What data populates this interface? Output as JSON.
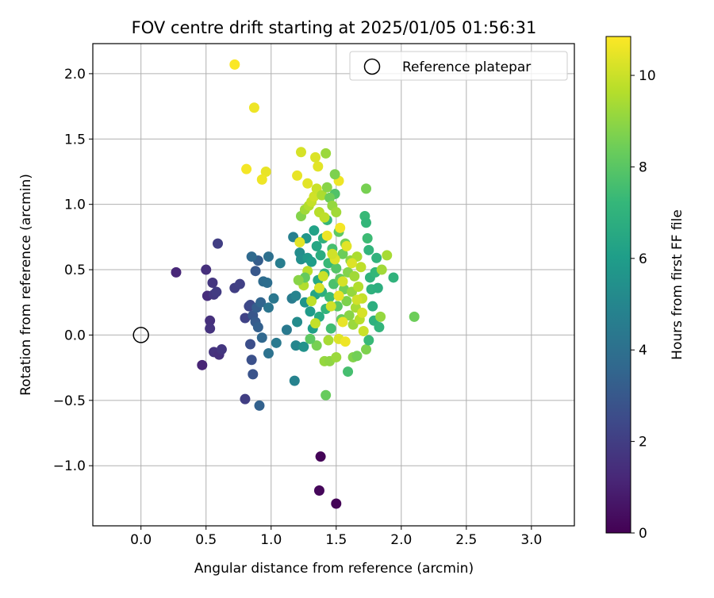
{
  "chart_data": {
    "type": "scatter",
    "title": "FOV centre drift starting at 2025/01/05 01:56:31",
    "xlabel": "Angular distance from reference (arcmin)",
    "ylabel": "Rotation from reference (arcmin)",
    "xlim": [
      -0.37,
      3.33
    ],
    "ylim": [
      -1.46,
      2.23
    ],
    "xticks": [
      0.0,
      0.5,
      1.0,
      1.5,
      2.0,
      2.5,
      3.0
    ],
    "xtick_labels": [
      "0.0",
      "0.5",
      "1.0",
      "1.5",
      "2.0",
      "2.5",
      "3.0"
    ],
    "yticks": [
      -1.0,
      -0.5,
      0.0,
      0.5,
      1.0,
      1.5,
      2.0
    ],
    "ytick_labels": [
      "−1.0",
      "−0.5",
      "0.0",
      "0.5",
      "1.0",
      "1.5",
      "2.0"
    ],
    "grid": true,
    "legend": {
      "position": "top-right",
      "entries": [
        "Reference platepar"
      ]
    },
    "reference_point": {
      "x": 0.0,
      "y": 0.0
    },
    "colorbar": {
      "label": "Hours from first FF file",
      "range": [
        0,
        10.85
      ],
      "ticks": [
        0,
        2,
        4,
        6,
        8,
        10
      ],
      "tick_labels": [
        "0",
        "2",
        "4",
        "6",
        "8",
        "10"
      ],
      "colormap": "viridis"
    },
    "colors": {
      "viridis": [
        "#440154",
        "#482878",
        "#3e4989",
        "#31688e",
        "#26828e",
        "#1f9e89",
        "#35b779",
        "#6ece58",
        "#b5de2b",
        "#fde725"
      ],
      "grid": "#b0b0b0",
      "axis": "#000000"
    },
    "points": [
      {
        "x": 1.38,
        "y": -0.93,
        "h": 0.1
      },
      {
        "x": 1.37,
        "y": -1.19,
        "h": 0.2
      },
      {
        "x": 1.5,
        "y": -1.29,
        "h": 0.1
      },
      {
        "x": 0.47,
        "y": -0.23,
        "h": 1.1
      },
      {
        "x": 0.27,
        "y": 0.48,
        "h": 1.2
      },
      {
        "x": 0.51,
        "y": 0.3,
        "h": 1.4
      },
      {
        "x": 0.5,
        "y": 0.5,
        "h": 1.5
      },
      {
        "x": 0.53,
        "y": 0.11,
        "h": 1.5
      },
      {
        "x": 0.53,
        "y": 0.05,
        "h": 1.6
      },
      {
        "x": 0.55,
        "y": 0.4,
        "h": 1.7
      },
      {
        "x": 0.56,
        "y": 0.31,
        "h": 1.8
      },
      {
        "x": 0.58,
        "y": 0.33,
        "h": 1.9
      },
      {
        "x": 0.56,
        "y": -0.13,
        "h": 1.6
      },
      {
        "x": 0.6,
        "y": -0.15,
        "h": 1.5
      },
      {
        "x": 0.62,
        "y": -0.11,
        "h": 1.7
      },
      {
        "x": 0.59,
        "y": 0.7,
        "h": 2.0
      },
      {
        "x": 0.72,
        "y": 0.36,
        "h": 2.0
      },
      {
        "x": 0.76,
        "y": 0.39,
        "h": 2.1
      },
      {
        "x": 0.8,
        "y": 0.13,
        "h": 2.2
      },
      {
        "x": 0.8,
        "y": -0.49,
        "h": 2.0
      },
      {
        "x": 0.83,
        "y": 0.22,
        "h": 2.3
      },
      {
        "x": 0.84,
        "y": 0.23,
        "h": 2.4
      },
      {
        "x": 0.84,
        "y": -0.07,
        "h": 2.6
      },
      {
        "x": 0.85,
        "y": -0.19,
        "h": 2.7
      },
      {
        "x": 0.86,
        "y": -0.3,
        "h": 2.8
      },
      {
        "x": 0.86,
        "y": 0.15,
        "h": 2.9
      },
      {
        "x": 0.88,
        "y": 0.49,
        "h": 3.0
      },
      {
        "x": 0.88,
        "y": 0.1,
        "h": 3.1
      },
      {
        "x": 0.89,
        "y": 0.21,
        "h": 3.2
      },
      {
        "x": 0.9,
        "y": 0.57,
        "h": 3.2
      },
      {
        "x": 0.9,
        "y": 0.06,
        "h": 3.3
      },
      {
        "x": 0.91,
        "y": -0.54,
        "h": 3.4
      },
      {
        "x": 0.92,
        "y": 0.25,
        "h": 3.5
      },
      {
        "x": 0.93,
        "y": -0.02,
        "h": 3.6
      },
      {
        "x": 0.85,
        "y": 0.6,
        "h": 3.7
      },
      {
        "x": 0.94,
        "y": 0.41,
        "h": 3.8
      },
      {
        "x": 0.97,
        "y": 0.4,
        "h": 3.9
      },
      {
        "x": 0.98,
        "y": 0.6,
        "h": 4.0
      },
      {
        "x": 0.98,
        "y": -0.14,
        "h": 4.1
      },
      {
        "x": 0.98,
        "y": 0.21,
        "h": 4.2
      },
      {
        "x": 1.02,
        "y": 0.28,
        "h": 4.3
      },
      {
        "x": 1.04,
        "y": -0.06,
        "h": 4.4
      },
      {
        "x": 1.07,
        "y": 0.55,
        "h": 4.6
      },
      {
        "x": 1.12,
        "y": 0.04,
        "h": 4.4
      },
      {
        "x": 1.16,
        "y": 0.28,
        "h": 4.5
      },
      {
        "x": 1.17,
        "y": 0.75,
        "h": 4.7
      },
      {
        "x": 1.18,
        "y": -0.35,
        "h": 4.8
      },
      {
        "x": 1.19,
        "y": 0.3,
        "h": 4.9
      },
      {
        "x": 1.19,
        "y": -0.08,
        "h": 5.0
      },
      {
        "x": 1.2,
        "y": 0.1,
        "h": 5.2
      },
      {
        "x": 1.22,
        "y": 0.63,
        "h": 5.3
      },
      {
        "x": 1.23,
        "y": 0.58,
        "h": 5.4
      },
      {
        "x": 1.25,
        "y": -0.09,
        "h": 5.5
      },
      {
        "x": 1.26,
        "y": 0.25,
        "h": 5.6
      },
      {
        "x": 1.27,
        "y": 0.74,
        "h": 5.7
      },
      {
        "x": 1.28,
        "y": 0.59,
        "h": 5.8
      },
      {
        "x": 1.3,
        "y": 0.18,
        "h": 5.9
      },
      {
        "x": 1.31,
        "y": 0.56,
        "h": 6.0
      },
      {
        "x": 1.32,
        "y": 0.05,
        "h": 6.1
      },
      {
        "x": 1.33,
        "y": 0.8,
        "h": 6.2
      },
      {
        "x": 1.34,
        "y": 0.31,
        "h": 6.3
      },
      {
        "x": 1.35,
        "y": 0.68,
        "h": 6.4
      },
      {
        "x": 1.36,
        "y": 0.42,
        "h": 6.5
      },
      {
        "x": 1.37,
        "y": 0.14,
        "h": 6.6
      },
      {
        "x": 1.38,
        "y": 0.61,
        "h": 6.7
      },
      {
        "x": 1.39,
        "y": 0.33,
        "h": 6.8
      },
      {
        "x": 1.4,
        "y": 0.74,
        "h": 6.9
      },
      {
        "x": 1.41,
        "y": 0.47,
        "h": 7.0
      },
      {
        "x": 1.42,
        "y": 0.2,
        "h": 7.1
      },
      {
        "x": 1.43,
        "y": 0.88,
        "h": 7.2
      },
      {
        "x": 1.44,
        "y": 0.55,
        "h": 7.3
      },
      {
        "x": 1.45,
        "y": 0.29,
        "h": 7.4
      },
      {
        "x": 1.46,
        "y": 0.05,
        "h": 7.5
      },
      {
        "x": 1.47,
        "y": 0.66,
        "h": 7.6
      },
      {
        "x": 1.48,
        "y": 0.39,
        "h": 7.7
      },
      {
        "x": 1.49,
        "y": 1.08,
        "h": 7.8
      },
      {
        "x": 1.5,
        "y": 0.51,
        "h": 7.9
      },
      {
        "x": 1.51,
        "y": 0.22,
        "h": 8.0
      },
      {
        "x": 1.52,
        "y": 0.79,
        "h": 8.1
      },
      {
        "x": 1.53,
        "y": 0.43,
        "h": 8.2
      },
      {
        "x": 1.54,
        "y": 0.12,
        "h": 8.3
      },
      {
        "x": 1.55,
        "y": 0.62,
        "h": 8.4
      },
      {
        "x": 1.56,
        "y": 0.35,
        "h": 8.5
      },
      {
        "x": 1.57,
        "y": 0.7,
        "h": 8.6
      },
      {
        "x": 1.58,
        "y": 0.26,
        "h": 8.7
      },
      {
        "x": 1.59,
        "y": 0.48,
        "h": 8.8
      },
      {
        "x": 1.6,
        "y": 0.15,
        "h": 8.9
      },
      {
        "x": 1.61,
        "y": 0.57,
        "h": 9.0
      },
      {
        "x": 1.62,
        "y": 0.33,
        "h": 9.1
      },
      {
        "x": 1.63,
        "y": 0.08,
        "h": 9.2
      },
      {
        "x": 1.64,
        "y": 0.45,
        "h": 9.3
      },
      {
        "x": 1.65,
        "y": 0.21,
        "h": 9.4
      },
      {
        "x": 1.66,
        "y": 0.6,
        "h": 9.5
      },
      {
        "x": 1.67,
        "y": 0.37,
        "h": 9.6
      },
      {
        "x": 1.68,
        "y": 0.12,
        "h": 9.7
      },
      {
        "x": 1.69,
        "y": 0.52,
        "h": 9.8
      },
      {
        "x": 1.7,
        "y": 0.28,
        "h": 9.9
      },
      {
        "x": 1.71,
        "y": 0.03,
        "h": 10.0
      },
      {
        "x": 1.72,
        "y": 0.91,
        "h": 7.3
      },
      {
        "x": 1.73,
        "y": 0.86,
        "h": 7.2
      },
      {
        "x": 1.74,
        "y": 0.74,
        "h": 7.4
      },
      {
        "x": 1.75,
        "y": 0.65,
        "h": 7.1
      },
      {
        "x": 1.76,
        "y": 0.44,
        "h": 7.0
      },
      {
        "x": 1.77,
        "y": 0.35,
        "h": 6.9
      },
      {
        "x": 1.78,
        "y": 0.22,
        "h": 6.8
      },
      {
        "x": 1.79,
        "y": 0.11,
        "h": 6.9
      },
      {
        "x": 1.8,
        "y": 0.48,
        "h": 7.2
      },
      {
        "x": 1.81,
        "y": 0.59,
        "h": 7.0
      },
      {
        "x": 1.82,
        "y": 0.36,
        "h": 6.8
      },
      {
        "x": 1.83,
        "y": 0.06,
        "h": 7.1
      },
      {
        "x": 1.84,
        "y": 0.14,
        "h": 9.1
      },
      {
        "x": 1.85,
        "y": 0.5,
        "h": 9.3
      },
      {
        "x": 1.89,
        "y": 0.61,
        "h": 9.4
      },
      {
        "x": 1.94,
        "y": 0.44,
        "h": 7.0
      },
      {
        "x": 2.1,
        "y": 0.14,
        "h": 8.4
      },
      {
        "x": 1.73,
        "y": 1.12,
        "h": 8.6
      },
      {
        "x": 1.73,
        "y": -0.11,
        "h": 8.7
      },
      {
        "x": 1.75,
        "y": -0.04,
        "h": 7.3
      },
      {
        "x": 1.7,
        "y": 0.17,
        "h": 10.2
      },
      {
        "x": 1.66,
        "y": 0.27,
        "h": 10.1
      },
      {
        "x": 1.62,
        "y": 0.55,
        "h": 10.3
      },
      {
        "x": 1.58,
        "y": 0.68,
        "h": 10.4
      },
      {
        "x": 1.55,
        "y": 0.41,
        "h": 10.2
      },
      {
        "x": 1.52,
        "y": 0.3,
        "h": 10.5
      },
      {
        "x": 1.49,
        "y": 0.58,
        "h": 10.3
      },
      {
        "x": 1.46,
        "y": 0.22,
        "h": 10.1
      },
      {
        "x": 1.43,
        "y": 0.76,
        "h": 10.6
      },
      {
        "x": 1.4,
        "y": 0.45,
        "h": 10.0
      },
      {
        "x": 1.37,
        "y": 0.36,
        "h": 10.2
      },
      {
        "x": 1.34,
        "y": 0.09,
        "h": 9.9
      },
      {
        "x": 1.31,
        "y": 0.26,
        "h": 9.8
      },
      {
        "x": 1.28,
        "y": 0.49,
        "h": 9.7
      },
      {
        "x": 1.25,
        "y": 0.38,
        "h": 9.6
      },
      {
        "x": 1.22,
        "y": 0.71,
        "h": 10.4
      },
      {
        "x": 1.52,
        "y": -0.03,
        "h": 10.3
      },
      {
        "x": 1.55,
        "y": 0.1,
        "h": 10.5
      },
      {
        "x": 1.57,
        "y": -0.05,
        "h": 10.6
      },
      {
        "x": 1.47,
        "y": 0.62,
        "h": 10.1
      },
      {
        "x": 1.53,
        "y": 0.82,
        "h": 10.7
      },
      {
        "x": 1.44,
        "y": -0.04,
        "h": 9.4
      },
      {
        "x": 1.41,
        "y": -0.2,
        "h": 9.1
      },
      {
        "x": 1.45,
        "y": -0.2,
        "h": 9.0
      },
      {
        "x": 1.5,
        "y": -0.17,
        "h": 9.2
      },
      {
        "x": 1.63,
        "y": -0.17,
        "h": 8.8
      },
      {
        "x": 1.66,
        "y": -0.16,
        "h": 8.5
      },
      {
        "x": 1.59,
        "y": -0.28,
        "h": 7.6
      },
      {
        "x": 1.42,
        "y": -0.46,
        "h": 8.3
      },
      {
        "x": 1.35,
        "y": -0.08,
        "h": 8.6
      },
      {
        "x": 1.3,
        "y": -0.03,
        "h": 8.1
      },
      {
        "x": 1.26,
        "y": 0.44,
        "h": 8.2
      },
      {
        "x": 1.21,
        "y": 0.42,
        "h": 8.9
      },
      {
        "x": 1.23,
        "y": 0.91,
        "h": 8.8
      },
      {
        "x": 1.26,
        "y": 0.96,
        "h": 9.3
      },
      {
        "x": 1.29,
        "y": 0.99,
        "h": 9.6
      },
      {
        "x": 1.31,
        "y": 1.02,
        "h": 9.9
      },
      {
        "x": 1.33,
        "y": 1.06,
        "h": 10.1
      },
      {
        "x": 1.35,
        "y": 1.12,
        "h": 10.0
      },
      {
        "x": 1.37,
        "y": 0.94,
        "h": 9.7
      },
      {
        "x": 1.39,
        "y": 1.07,
        "h": 9.5
      },
      {
        "x": 1.41,
        "y": 0.9,
        "h": 9.8
      },
      {
        "x": 1.43,
        "y": 1.13,
        "h": 8.9
      },
      {
        "x": 1.45,
        "y": 1.05,
        "h": 8.4
      },
      {
        "x": 1.47,
        "y": 0.99,
        "h": 9.1
      },
      {
        "x": 1.5,
        "y": 0.94,
        "h": 9.3
      },
      {
        "x": 1.52,
        "y": 1.18,
        "h": 10.6
      },
      {
        "x": 1.49,
        "y": 1.23,
        "h": 8.7
      },
      {
        "x": 1.42,
        "y": 1.39,
        "h": 9.2
      },
      {
        "x": 1.36,
        "y": 1.29,
        "h": 10.4
      },
      {
        "x": 1.34,
        "y": 1.36,
        "h": 10.3
      },
      {
        "x": 1.23,
        "y": 1.4,
        "h": 10.2
      },
      {
        "x": 1.2,
        "y": 1.22,
        "h": 10.5
      },
      {
        "x": 1.28,
        "y": 1.16,
        "h": 10.4
      },
      {
        "x": 0.72,
        "y": 2.07,
        "h": 10.8
      },
      {
        "x": 0.87,
        "y": 1.74,
        "h": 10.6
      },
      {
        "x": 0.81,
        "y": 1.27,
        "h": 10.7
      },
      {
        "x": 0.96,
        "y": 1.25,
        "h": 10.5
      },
      {
        "x": 0.93,
        "y": 1.19,
        "h": 10.6
      }
    ]
  }
}
